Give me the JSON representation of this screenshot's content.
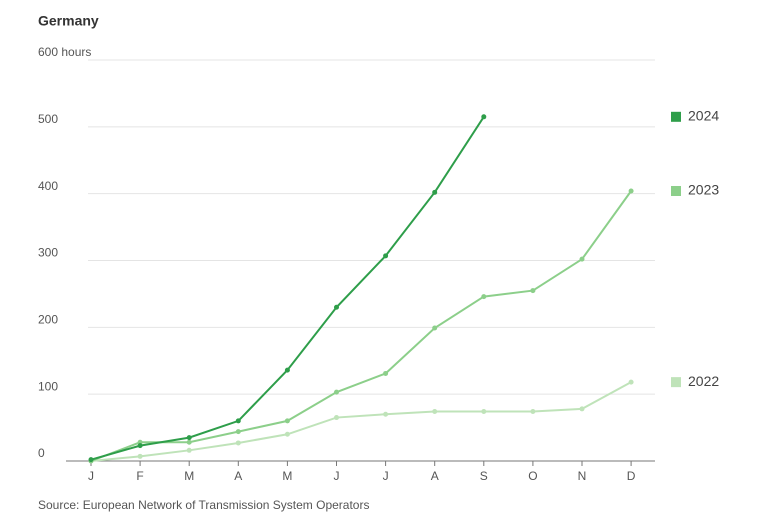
{
  "chart_data": {
    "type": "line",
    "title": "Germany",
    "source": "Source: European Network of Transmission System Operators",
    "categories": [
      "J",
      "F",
      "M",
      "A",
      "M",
      "J",
      "J",
      "A",
      "S",
      "O",
      "N",
      "D"
    ],
    "series": [
      {
        "name": "2024",
        "color": "#2e9e4a",
        "values": [
          2,
          23,
          35,
          60,
          136,
          230,
          307,
          402,
          515,
          null,
          null,
          null
        ]
      },
      {
        "name": "2023",
        "color": "#8ccf8a",
        "values": [
          0,
          28,
          28,
          44,
          60,
          103,
          131,
          199,
          246,
          255,
          302,
          404
        ]
      },
      {
        "name": "2022",
        "color": "#bfe3b9",
        "values": [
          0,
          7,
          16,
          27,
          40,
          65,
          70,
          74,
          74,
          74,
          78,
          118
        ]
      }
    ],
    "ylim": [
      0,
      600
    ],
    "yticks": [
      0,
      100,
      200,
      300,
      400,
      500,
      {
        "value": 600,
        "label": "600 hours"
      }
    ],
    "grid": true
  }
}
